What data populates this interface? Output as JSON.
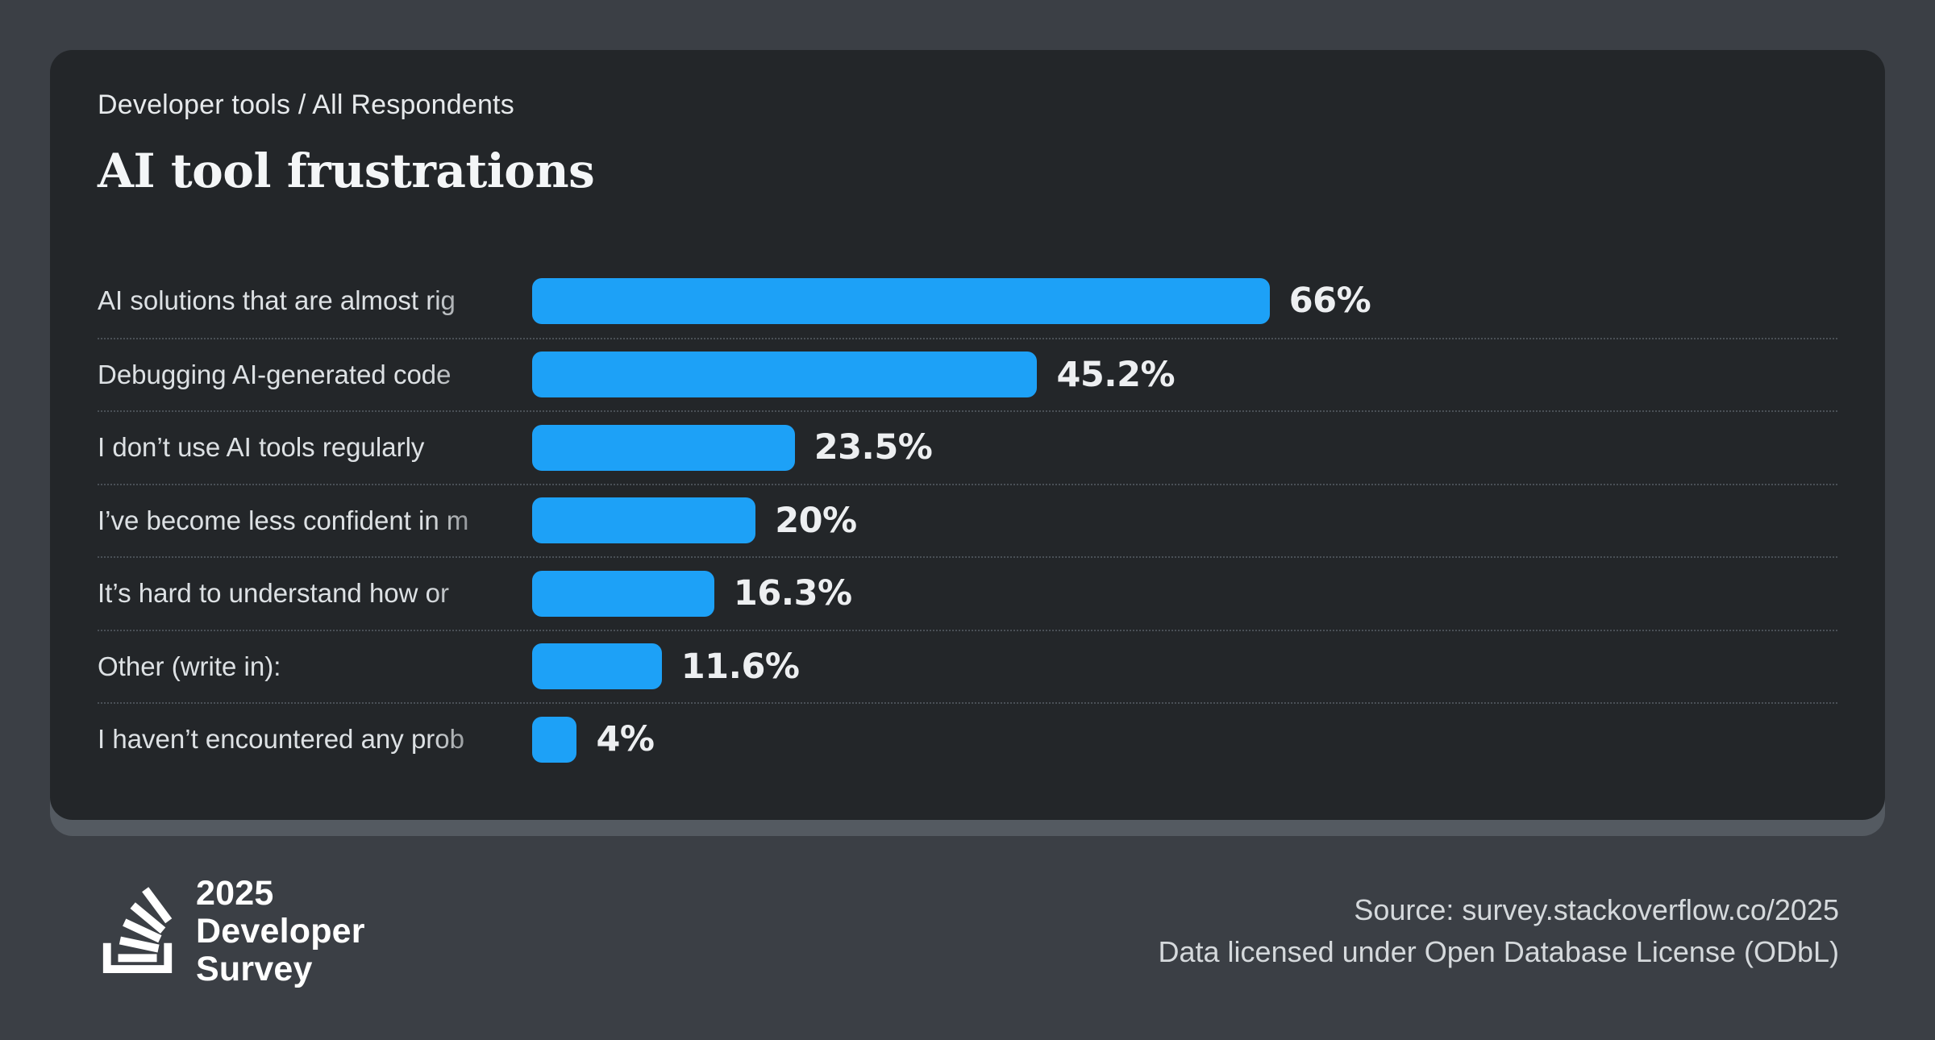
{
  "header": {
    "breadcrumb": "Developer tools / All Respondents",
    "title": "AI tool frustrations"
  },
  "chart_data": {
    "type": "bar",
    "orientation": "horizontal",
    "title": "AI tool frustrations",
    "subtitle": "Developer tools / All Respondents",
    "unit": "%",
    "grid": "dotted row separators",
    "bar_color": "#1da1f7",
    "categories": [
      "AI solutions that are almost rig",
      "Debugging AI-generated code",
      "I don’t use AI tools regularly",
      "I’ve become less confident in m",
      "It’s hard to understand how or",
      "Other (write in):",
      "I haven’t encountered any prob"
    ],
    "values": [
      66,
      45.2,
      23.5,
      20,
      16.3,
      11.6,
      4
    ],
    "value_labels": [
      "66%",
      "45.2%",
      "23.5%",
      "20%",
      "16.3%",
      "11.6%",
      "4%"
    ],
    "label_truncated": [
      true,
      true,
      false,
      true,
      true,
      false,
      true
    ]
  },
  "footer": {
    "logo_lines": [
      "2025",
      "Developer",
      "Survey"
    ],
    "source_line1": "Source: survey.stackoverflow.co/2025",
    "source_line2": "Data licensed under Open Database License (ODbL)"
  },
  "colors": {
    "outer_background": "#3b3f45",
    "card_background": "#232629",
    "card_underlay": "#545a61",
    "bar": "#1da1f7",
    "label_text": "#dde1e4",
    "value_text": "#edeff1",
    "separator": "#4a5056",
    "footer_text": "#d5d9dc"
  }
}
